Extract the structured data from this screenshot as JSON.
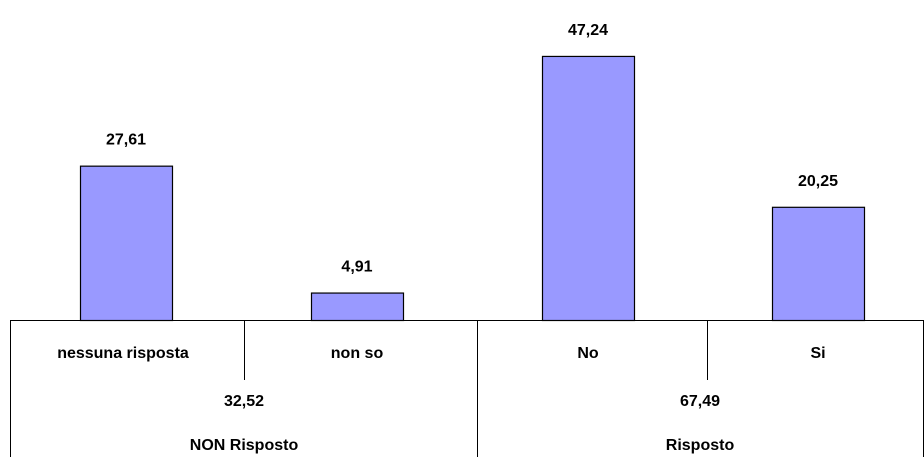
{
  "chart_data": {
    "type": "bar",
    "categories": [
      "nessuna risposta",
      "non so",
      "No",
      "Si"
    ],
    "values": [
      27.61,
      4.91,
      47.24,
      20.25
    ],
    "value_labels": [
      "27,61",
      "4,91",
      "47,24",
      "20,25"
    ],
    "groups": [
      {
        "name": "NON Risposto",
        "total_label": "32,52",
        "total": 32.52,
        "members": [
          0,
          1
        ]
      },
      {
        "name": "Risposto",
        "total_label": "67,49",
        "total": 67.49,
        "members": [
          2,
          3
        ]
      }
    ],
    "bar_color": "#9999ff",
    "ylim": [
      0,
      50
    ],
    "grid": false,
    "legend": "none"
  }
}
